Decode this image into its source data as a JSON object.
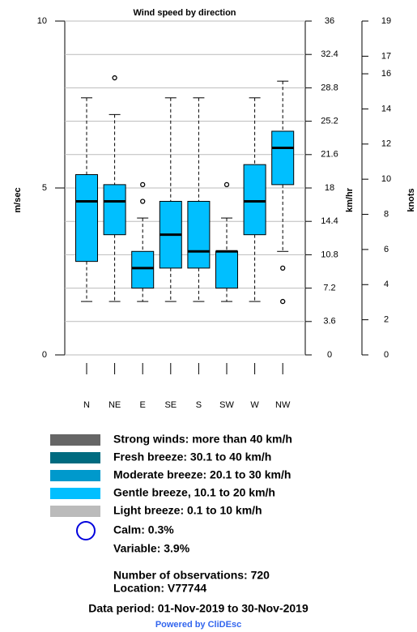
{
  "chart_data": {
    "type": "box",
    "title": "Wind speed by direction",
    "ylabel": "m/sec",
    "y2label": "km/hr",
    "y3label": "knots",
    "categories": [
      "N",
      "NE",
      "E",
      "SE",
      "S",
      "SW",
      "W",
      "NW"
    ],
    "color": "#00bfff",
    "boxes": [
      {
        "min": 1.6,
        "q1": 2.8,
        "median": 4.6,
        "q3": 5.4,
        "max": 7.7,
        "outliers": []
      },
      {
        "min": 1.6,
        "q1": 3.6,
        "median": 4.6,
        "q3": 5.1,
        "max": 7.2,
        "outliers": [
          8.3
        ]
      },
      {
        "min": 1.6,
        "q1": 2.0,
        "median": 2.6,
        "q3": 3.1,
        "max": 4.1,
        "outliers": [
          5.1,
          4.6
        ]
      },
      {
        "min": 1.6,
        "q1": 2.6,
        "median": 3.6,
        "q3": 4.6,
        "max": 7.7,
        "outliers": []
      },
      {
        "min": 1.6,
        "q1": 2.6,
        "median": 3.1,
        "q3": 4.6,
        "max": 7.7,
        "outliers": []
      },
      {
        "min": 1.6,
        "q1": 2.0,
        "median": 3.1,
        "q3": 3.1,
        "max": 4.1,
        "outliers": [
          5.1
        ]
      },
      {
        "min": 1.6,
        "q1": 3.6,
        "median": 4.6,
        "q3": 5.7,
        "max": 7.7,
        "outliers": []
      },
      {
        "min": 3.1,
        "q1": 5.1,
        "median": 6.2,
        "q3": 6.7,
        "max": 8.2,
        "outliers": [
          2.6,
          1.6
        ]
      }
    ],
    "ylim": [
      0,
      10
    ],
    "yticks": [
      0,
      5,
      10
    ],
    "y2lim": [
      0,
      36
    ],
    "y2ticks": [
      0,
      3.6,
      7.2,
      10.8,
      14.4,
      18,
      21.6,
      25.2,
      28.8,
      32.4,
      36
    ],
    "y3lim": [
      0,
      19
    ],
    "y3ticks": [
      0,
      2,
      4,
      6,
      8,
      10,
      12,
      14,
      16,
      17,
      19
    ],
    "grid": true
  },
  "legend": {
    "items": [
      {
        "label": "Strong winds: more than 40 km/h",
        "color": "#666666"
      },
      {
        "label": "Fresh breeze: 30.1 to 40 km/h",
        "color": "#006b80"
      },
      {
        "label": "Moderate breeze: 20.1 to 30 km/h",
        "color": "#0099cc"
      },
      {
        "label": "Gentle breeze, 10.1 to 20 km/h",
        "color": "#00bfff"
      },
      {
        "label": "Light breeze: 0.1 to 10 km/h",
        "color": "#bbbbbb"
      }
    ],
    "calm": "Calm: 0.3%",
    "variable": "Variable: 3.9%"
  },
  "footer": {
    "observations": "Number of observations:  720",
    "location": "Location:  V77744",
    "period": "Data period: 01-Nov-2019 to 30-Nov-2019",
    "powered": "Powered by CliDEsc"
  }
}
